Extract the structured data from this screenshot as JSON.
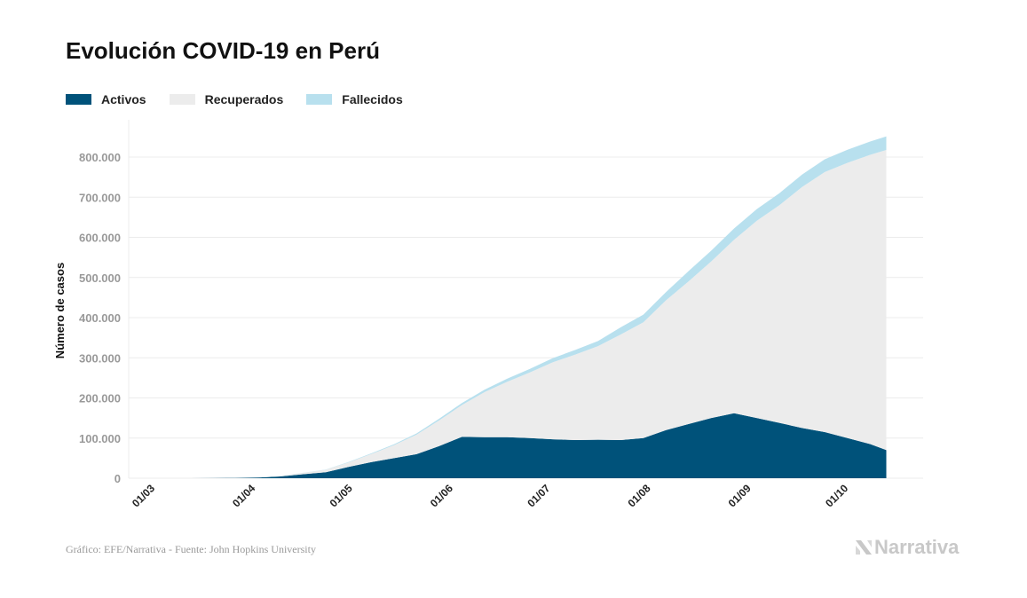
{
  "chart_data": {
    "type": "area",
    "stacked": true,
    "title": "Evolución COVID-19 en Perú",
    "xlabel": "",
    "ylabel": "Número de casos",
    "ylim": [
      0,
      850000
    ],
    "yticks": [
      0,
      100000,
      200000,
      300000,
      400000,
      500000,
      600000,
      700000,
      800000
    ],
    "ytick_labels": [
      "0",
      "100.000",
      "200.000",
      "300.000",
      "400.000",
      "500.000",
      "600.000",
      "700.000",
      "800.000"
    ],
    "xticks": [
      "2020-03-01",
      "2020-04-01",
      "2020-05-01",
      "2020-06-01",
      "2020-07-01",
      "2020-08-01",
      "2020-09-01",
      "2020-10-01"
    ],
    "xtick_labels": [
      "01/03",
      "01/04",
      "01/05",
      "01/06",
      "01/07",
      "01/08",
      "01/09",
      "01/10"
    ],
    "grid": "horizontal",
    "legend_placement": "top-left",
    "colors": {
      "Activos": "#00527a",
      "Recuperados": "#ececec",
      "Fallecidos": "#b8e0ee"
    },
    "series_order": [
      "Activos",
      "Recuperados",
      "Fallecidos"
    ],
    "points": [
      {
        "date": "2020-03-06",
        "total": 1,
        "activos": 1,
        "fallecidos": 0
      },
      {
        "date": "2020-03-13",
        "total": 38,
        "activos": 38,
        "fallecidos": 0
      },
      {
        "date": "2020-03-20",
        "total": 234,
        "activos": 230,
        "fallecidos": 3
      },
      {
        "date": "2020-03-27",
        "total": 635,
        "activos": 600,
        "fallecidos": 11
      },
      {
        "date": "2020-04-03",
        "total": 1595,
        "activos": 1450,
        "fallecidos": 61
      },
      {
        "date": "2020-04-10",
        "total": 5897,
        "activos": 4500,
        "fallecidos": 169
      },
      {
        "date": "2020-04-17",
        "total": 13489,
        "activos": 10000,
        "fallecidos": 300
      },
      {
        "date": "2020-04-24",
        "total": 21648,
        "activos": 15000,
        "fallecidos": 600
      },
      {
        "date": "2020-05-01",
        "total": 40459,
        "activos": 28000,
        "fallecidos": 1124
      },
      {
        "date": "2020-05-08",
        "total": 61847,
        "activos": 40000,
        "fallecidos": 1714
      },
      {
        "date": "2020-05-15",
        "total": 84495,
        "activos": 50000,
        "fallecidos": 2392
      },
      {
        "date": "2020-05-22",
        "total": 111698,
        "activos": 60000,
        "fallecidos": 3244
      },
      {
        "date": "2020-05-29",
        "total": 148285,
        "activos": 80000,
        "fallecidos": 4230
      },
      {
        "date": "2020-06-05",
        "total": 187400,
        "activos": 103000,
        "fallecidos": 5162
      },
      {
        "date": "2020-06-12",
        "total": 220749,
        "activos": 102000,
        "fallecidos": 6109
      },
      {
        "date": "2020-06-19",
        "total": 247925,
        "activos": 102000,
        "fallecidos": 7660
      },
      {
        "date": "2020-06-26",
        "total": 272364,
        "activos": 100000,
        "fallecidos": 8939
      },
      {
        "date": "2020-07-03",
        "total": 299080,
        "activos": 97000,
        "fallecidos": 10412
      },
      {
        "date": "2020-07-10",
        "total": 319646,
        "activos": 95000,
        "fallecidos": 11500
      },
      {
        "date": "2020-07-17",
        "total": 341586,
        "activos": 96000,
        "fallecidos": 12615
      },
      {
        "date": "2020-07-24",
        "total": 375961,
        "activos": 95000,
        "fallecidos": 17843
      },
      {
        "date": "2020-07-31",
        "total": 407492,
        "activos": 100000,
        "fallecidos": 19021
      },
      {
        "date": "2020-08-07",
        "total": 463875,
        "activos": 120000,
        "fallecidos": 20649
      },
      {
        "date": "2020-08-14",
        "total": 516296,
        "activos": 135000,
        "fallecidos": 25648
      },
      {
        "date": "2020-08-21",
        "total": 567059,
        "activos": 150000,
        "fallecidos": 26658
      },
      {
        "date": "2020-08-28",
        "total": 621997,
        "activos": 162000,
        "fallecidos": 28277
      },
      {
        "date": "2020-09-04",
        "total": 670145,
        "activos": 150000,
        "fallecidos": 29068
      },
      {
        "date": "2020-09-11",
        "total": 710067,
        "activos": 138000,
        "fallecidos": 30123
      },
      {
        "date": "2020-09-18",
        "total": 756412,
        "activos": 125000,
        "fallecidos": 30927
      },
      {
        "date": "2020-09-25",
        "total": 794584,
        "activos": 115000,
        "fallecidos": 32037
      },
      {
        "date": "2020-10-02",
        "total": 818297,
        "activos": 100000,
        "fallecidos": 32609
      },
      {
        "date": "2020-10-09",
        "total": 838614,
        "activos": 85000,
        "fallecidos": 33133
      },
      {
        "date": "2020-10-14",
        "total": 851171,
        "activos": 70000,
        "fallecidos": 33512
      }
    ]
  },
  "legend": [
    {
      "label": "Activos"
    },
    {
      "label": "Recuperados"
    },
    {
      "label": "Fallecidos"
    }
  ],
  "footer": {
    "source": "Gráfico: EFE/Narrativa - Fuente: John Hopkins University",
    "logo": "Narrativa"
  }
}
